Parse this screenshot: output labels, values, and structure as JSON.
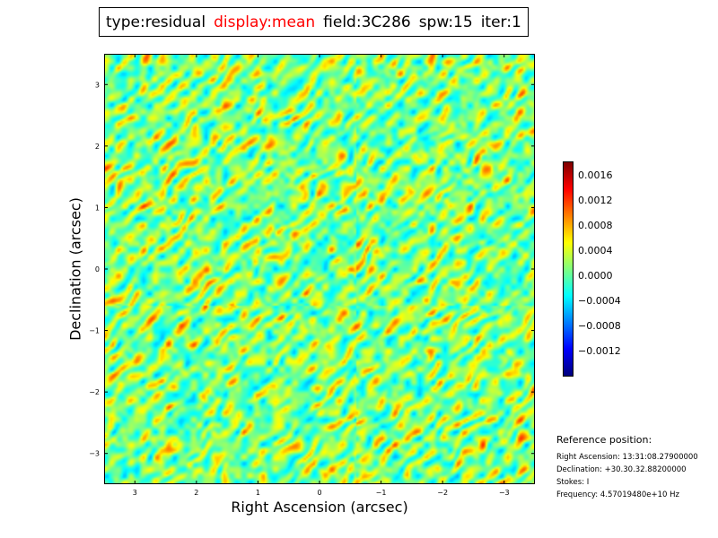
{
  "title": {
    "type": "type:residual",
    "display": "display:mean",
    "field": "field:3C286",
    "spw": "spw:15",
    "iter": "iter:1",
    "display_color": "#ff0000"
  },
  "chart_data": {
    "type": "heatmap",
    "image": "residual image",
    "colormap": "jet",
    "xlabel": "Right Ascension (arcsec)",
    "ylabel": "Declination (arcsec)",
    "xlim": [
      3.5,
      -3.5
    ],
    "ylim": [
      -3.5,
      3.5
    ],
    "x_ticks": [
      3,
      2,
      1,
      0,
      -1,
      -2,
      -3
    ],
    "x_tick_labels": [
      "3",
      "2",
      "1",
      "0",
      "−1",
      "−2",
      "−3"
    ],
    "y_ticks": [
      3,
      2,
      1,
      0,
      -1,
      -2,
      -3
    ],
    "y_tick_labels": [
      "3",
      "2",
      "1",
      "0",
      "−1",
      "−2",
      "−3"
    ],
    "colorbar": {
      "vmin": -0.0016,
      "vmax": 0.0018,
      "ticks": [
        0.0016,
        0.0012,
        0.0008,
        0.0004,
        0.0,
        -0.0004,
        -0.0008,
        -0.0012
      ],
      "tick_labels": [
        "0.0016",
        "0.0012",
        "0.0008",
        "0.0004",
        "0.0000",
        "−0.0004",
        "−0.0008",
        "−0.0012"
      ]
    }
  },
  "reference": {
    "heading": "Reference position:",
    "ra": "Right Ascension: 13:31:08.27900000",
    "dec": "Declination: +30.30.32.88200000",
    "stokes": "Stokes: I",
    "frequency": "Frequency: 4.57019480e+10 Hz"
  }
}
